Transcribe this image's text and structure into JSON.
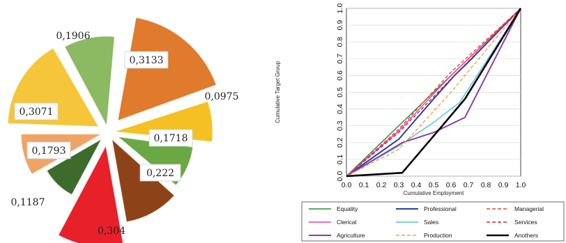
{
  "chart_data": [
    {
      "type": "pie",
      "exploded": true,
      "slices": [
        {
          "label": "0,3133",
          "value": 0.3133,
          "color": "#e07a2c",
          "label_style": "box"
        },
        {
          "label": "0,0975",
          "value": 0.0975,
          "color": "#f5c022",
          "label_style": "outside"
        },
        {
          "label": "0,1718",
          "value": 0.1718,
          "color": "#6aa843",
          "label_style": "box"
        },
        {
          "label": "0,222",
          "value": 0.222,
          "color": "#8e4218",
          "label_style": "box"
        },
        {
          "label": "0,304",
          "value": 0.304,
          "color": "#e8202a",
          "label_style": "inside"
        },
        {
          "label": "0,1187",
          "value": 0.1187,
          "color": "#3d6b2b",
          "label_style": "outside"
        },
        {
          "label": "0,1793",
          "value": 0.1793,
          "color": "#efa466",
          "label_style": "box"
        },
        {
          "label": "0,3071",
          "value": 0.3071,
          "color": "#f6c63a",
          "label_style": "box"
        },
        {
          "label": "0,1906",
          "value": 0.1906,
          "color": "#8bba62",
          "label_style": "outside"
        }
      ]
    },
    {
      "type": "line",
      "xlabel": "Cumulative Employment",
      "ylabel": "Cumulative Target Group",
      "xlim": [
        0,
        1
      ],
      "ylim": [
        0,
        1
      ],
      "xticks": [
        "0.0",
        "0.1",
        "0.2",
        "0.3",
        "0.4",
        "0.5",
        "0.6",
        "0.7",
        "0.8",
        "0.9",
        "1.0"
      ],
      "yticks": [
        "0.0",
        "0.1",
        "0.2",
        "0.3",
        "0.4",
        "0.5",
        "0.6",
        "0.7",
        "0.8",
        "0.9",
        "1.0"
      ],
      "grid": "horizontal",
      "legend_position": "bottom",
      "series": [
        {
          "name": "Equality",
          "color": "#2e8b3a",
          "dash": "solid",
          "width": 1.4,
          "x": [
            0,
            1
          ],
          "y": [
            0,
            1
          ]
        },
        {
          "name": "Professional",
          "color": "#2a3f9e",
          "dash": "solid",
          "width": 2,
          "x": [
            0,
            0.3,
            0.5,
            0.62,
            0.7,
            1
          ],
          "y": [
            0,
            0.22,
            0.46,
            0.6,
            0.68,
            1
          ]
        },
        {
          "name": "Managerial",
          "color": "#e04a2a",
          "dash": "dashed",
          "width": 1.4,
          "x": [
            0,
            0.3,
            0.6,
            1
          ],
          "y": [
            0,
            0.28,
            0.62,
            1
          ]
        },
        {
          "name": "Clerical",
          "color": "#e8409a",
          "dash": "solid",
          "width": 1.4,
          "x": [
            0,
            0.3,
            0.6,
            1
          ],
          "y": [
            0,
            0.27,
            0.6,
            1
          ]
        },
        {
          "name": "Sales",
          "color": "#4fc0e0",
          "dash": "solid",
          "width": 1.4,
          "x": [
            0,
            0.3,
            0.5,
            0.65,
            1
          ],
          "y": [
            0,
            0.18,
            0.32,
            0.44,
            1
          ]
        },
        {
          "name": "Services",
          "color": "#c2264a",
          "dash": "dashed",
          "width": 1.4,
          "x": [
            0,
            0.3,
            0.6,
            1
          ],
          "y": [
            0,
            0.26,
            0.58,
            1
          ]
        },
        {
          "name": "Agriculture",
          "color": "#8a3fa8",
          "dash": "solid",
          "width": 2,
          "x": [
            0,
            0.32,
            0.5,
            0.68,
            1
          ],
          "y": [
            0,
            0.2,
            0.26,
            0.35,
            1
          ]
        },
        {
          "name": "Production",
          "color": "#f2a040",
          "dash": "dashed",
          "width": 1.4,
          "x": [
            0,
            0.3,
            0.6,
            1
          ],
          "y": [
            0,
            0.16,
            0.5,
            1
          ]
        },
        {
          "name": "Anothers",
          "color": "#000000",
          "dash": "solid",
          "width": 2.6,
          "x": [
            0,
            0.32,
            0.55,
            0.68,
            1
          ],
          "y": [
            0,
            0.02,
            0.3,
            0.46,
            1
          ]
        }
      ]
    }
  ]
}
